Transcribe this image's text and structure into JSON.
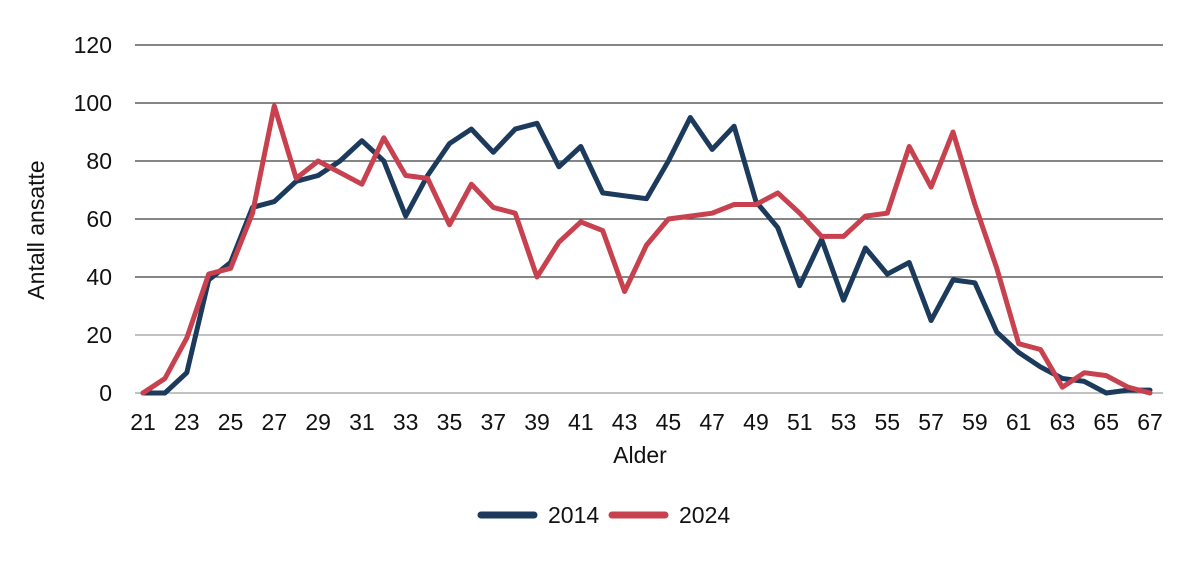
{
  "chart_data": {
    "type": "line",
    "title": "",
    "xlabel": "Alder",
    "ylabel": "Antall ansatte",
    "x": [
      21,
      22,
      23,
      24,
      25,
      26,
      27,
      28,
      29,
      30,
      31,
      32,
      33,
      34,
      35,
      36,
      37,
      38,
      39,
      40,
      41,
      42,
      43,
      44,
      45,
      46,
      47,
      48,
      49,
      50,
      51,
      52,
      53,
      54,
      55,
      56,
      57,
      58,
      59,
      60,
      61,
      62,
      63,
      64,
      65,
      66,
      67
    ],
    "x_ticks": [
      21,
      23,
      25,
      27,
      29,
      31,
      33,
      35,
      37,
      39,
      41,
      43,
      45,
      47,
      49,
      51,
      53,
      55,
      57,
      59,
      61,
      63,
      65,
      67
    ],
    "y_ticks": [
      0,
      20,
      40,
      60,
      80,
      100,
      120
    ],
    "ylim": [
      0,
      120
    ],
    "grid": "horizontal",
    "legend_position": "bottom-center",
    "colors": {
      "grid_dark": "#3e3e3e",
      "grid_light": "#9e9e9e",
      "light_gridline_values": [
        0,
        20
      ],
      "text": "#111111"
    },
    "series": [
      {
        "name": "2014",
        "color": "#1b3a5c",
        "values": [
          0,
          0,
          7,
          39,
          45,
          64,
          66,
          73,
          75,
          80,
          87,
          80,
          61,
          75,
          86,
          91,
          83,
          91,
          93,
          78,
          85,
          69,
          68,
          67,
          80,
          95,
          84,
          92,
          66,
          57,
          37,
          53,
          32,
          50,
          41,
          45,
          25,
          39,
          38,
          21,
          14,
          9,
          5,
          4,
          0,
          1,
          1
        ]
      },
      {
        "name": "2024",
        "color": "#c7414f",
        "values": [
          0,
          5,
          19,
          41,
          43,
          62,
          99,
          74,
          80,
          76,
          72,
          88,
          75,
          74,
          58,
          72,
          64,
          62,
          40,
          52,
          59,
          56,
          35,
          51,
          60,
          61,
          62,
          65,
          65,
          69,
          62,
          54,
          54,
          61,
          62,
          85,
          71,
          90,
          65,
          43,
          17,
          15,
          2,
          7,
          6,
          2,
          0
        ]
      }
    ]
  }
}
